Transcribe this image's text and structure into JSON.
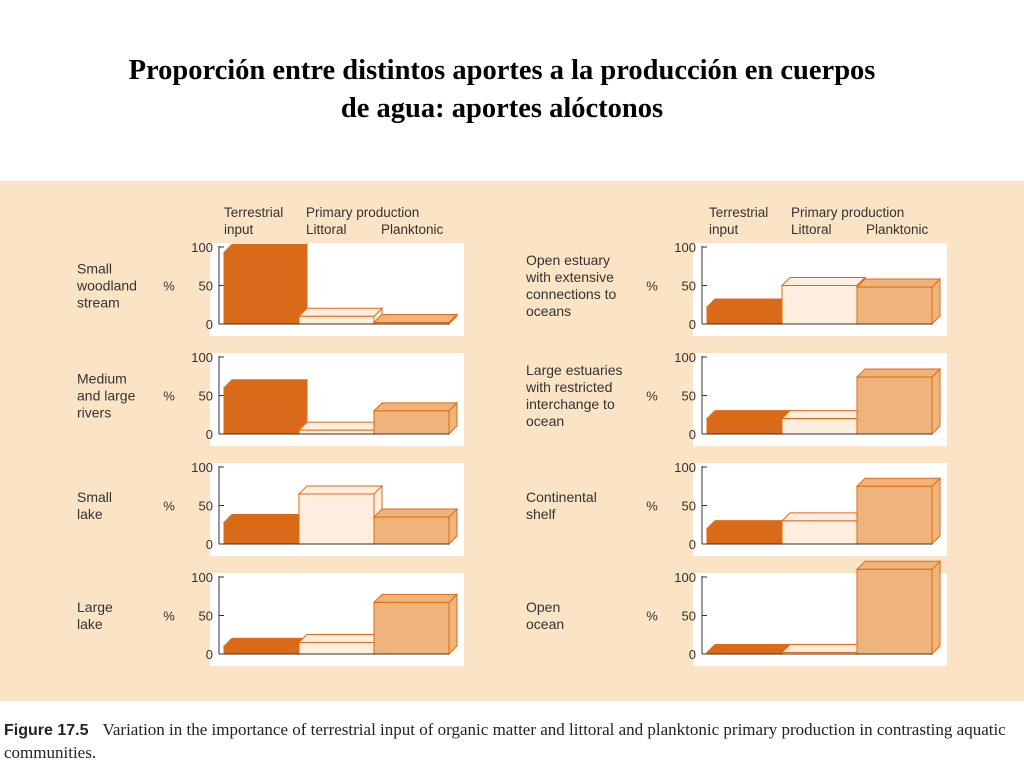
{
  "slide": {
    "title_line1": "Proporción entre distintos aportes a la producción en cuerpos",
    "title_line2": "de agua: aportes alóctonos"
  },
  "figure": {
    "label": "Figure 17.5",
    "caption": "Variation in the importance of terrestrial input of organic matter and littoral and planktonic primary production in contrasting aquatic communities."
  },
  "colors": {
    "panel": "#fbe3c5",
    "terrestrial": "#d96a1a",
    "littoral": "#fdeee0",
    "planktonic": "#eeb47c",
    "outline": "#e06a12"
  },
  "headers": {
    "terrestrial": [
      "Terrestrial",
      "input"
    ],
    "primary": "Primary production",
    "littoral": "Littoral",
    "planktonic": "Planktonic"
  },
  "chart_data": [
    {
      "type": "bar",
      "label": [
        "Small",
        "woodland",
        "stream"
      ],
      "ylabel": "%",
      "ylim": [
        0,
        100
      ],
      "yticks": [
        "0",
        "50",
        "100"
      ],
      "categories": [
        "Terrestrial input",
        "Littoral",
        "Planktonic"
      ],
      "values": [
        93,
        10,
        1
      ]
    },
    {
      "type": "bar",
      "label": [
        "Medium",
        "and large",
        "rivers"
      ],
      "ylabel": "%",
      "ylim": [
        0,
        100
      ],
      "yticks": [
        "0",
        "50",
        "100"
      ],
      "categories": [
        "Terrestrial input",
        "Littoral",
        "Planktonic"
      ],
      "values": [
        60,
        5,
        30
      ]
    },
    {
      "type": "bar",
      "label": [
        "Small",
        "lake"
      ],
      "ylabel": "%",
      "ylim": [
        0,
        100
      ],
      "yticks": [
        "0",
        "50",
        "100"
      ],
      "categories": [
        "Terrestrial input",
        "Littoral",
        "Planktonic"
      ],
      "values": [
        28,
        65,
        35
      ]
    },
    {
      "type": "bar",
      "label": [
        "Large",
        "lake"
      ],
      "ylabel": "%",
      "ylim": [
        0,
        100
      ],
      "yticks": [
        "0",
        "50",
        "100"
      ],
      "categories": [
        "Terrestrial input",
        "Littoral",
        "Planktonic"
      ],
      "values": [
        10,
        15,
        67
      ]
    },
    {
      "type": "bar",
      "label": [
        "Open estuary",
        "with extensive",
        "connections to",
        "oceans"
      ],
      "ylabel": "%",
      "ylim": [
        0,
        100
      ],
      "yticks": [
        "0",
        "50",
        "100"
      ],
      "categories": [
        "Terrestrial input",
        "Littoral",
        "Planktonic"
      ],
      "values": [
        22,
        50,
        48
      ]
    },
    {
      "type": "bar",
      "label": [
        "Large estuaries",
        "with restricted",
        "interchange to",
        "ocean"
      ],
      "ylabel": "%",
      "ylim": [
        0,
        100
      ],
      "yticks": [
        "0",
        "50",
        "100"
      ],
      "categories": [
        "Terrestrial input",
        "Littoral",
        "Planktonic"
      ],
      "values": [
        20,
        20,
        74
      ]
    },
    {
      "type": "bar",
      "label": [
        "Continental",
        "shelf"
      ],
      "ylabel": "%",
      "ylim": [
        0,
        100
      ],
      "yticks": [
        "0",
        "50",
        "100"
      ],
      "categories": [
        "Terrestrial input",
        "Littoral",
        "Planktonic"
      ],
      "values": [
        20,
        30,
        75
      ]
    },
    {
      "type": "bar",
      "label": [
        "Open",
        "ocean"
      ],
      "ylabel": "%",
      "ylim": [
        0,
        100
      ],
      "yticks": [
        "0",
        "50",
        "100"
      ],
      "categories": [
        "Terrestrial input",
        "Littoral",
        "Planktonic"
      ],
      "values": [
        1,
        1,
        110
      ]
    }
  ]
}
